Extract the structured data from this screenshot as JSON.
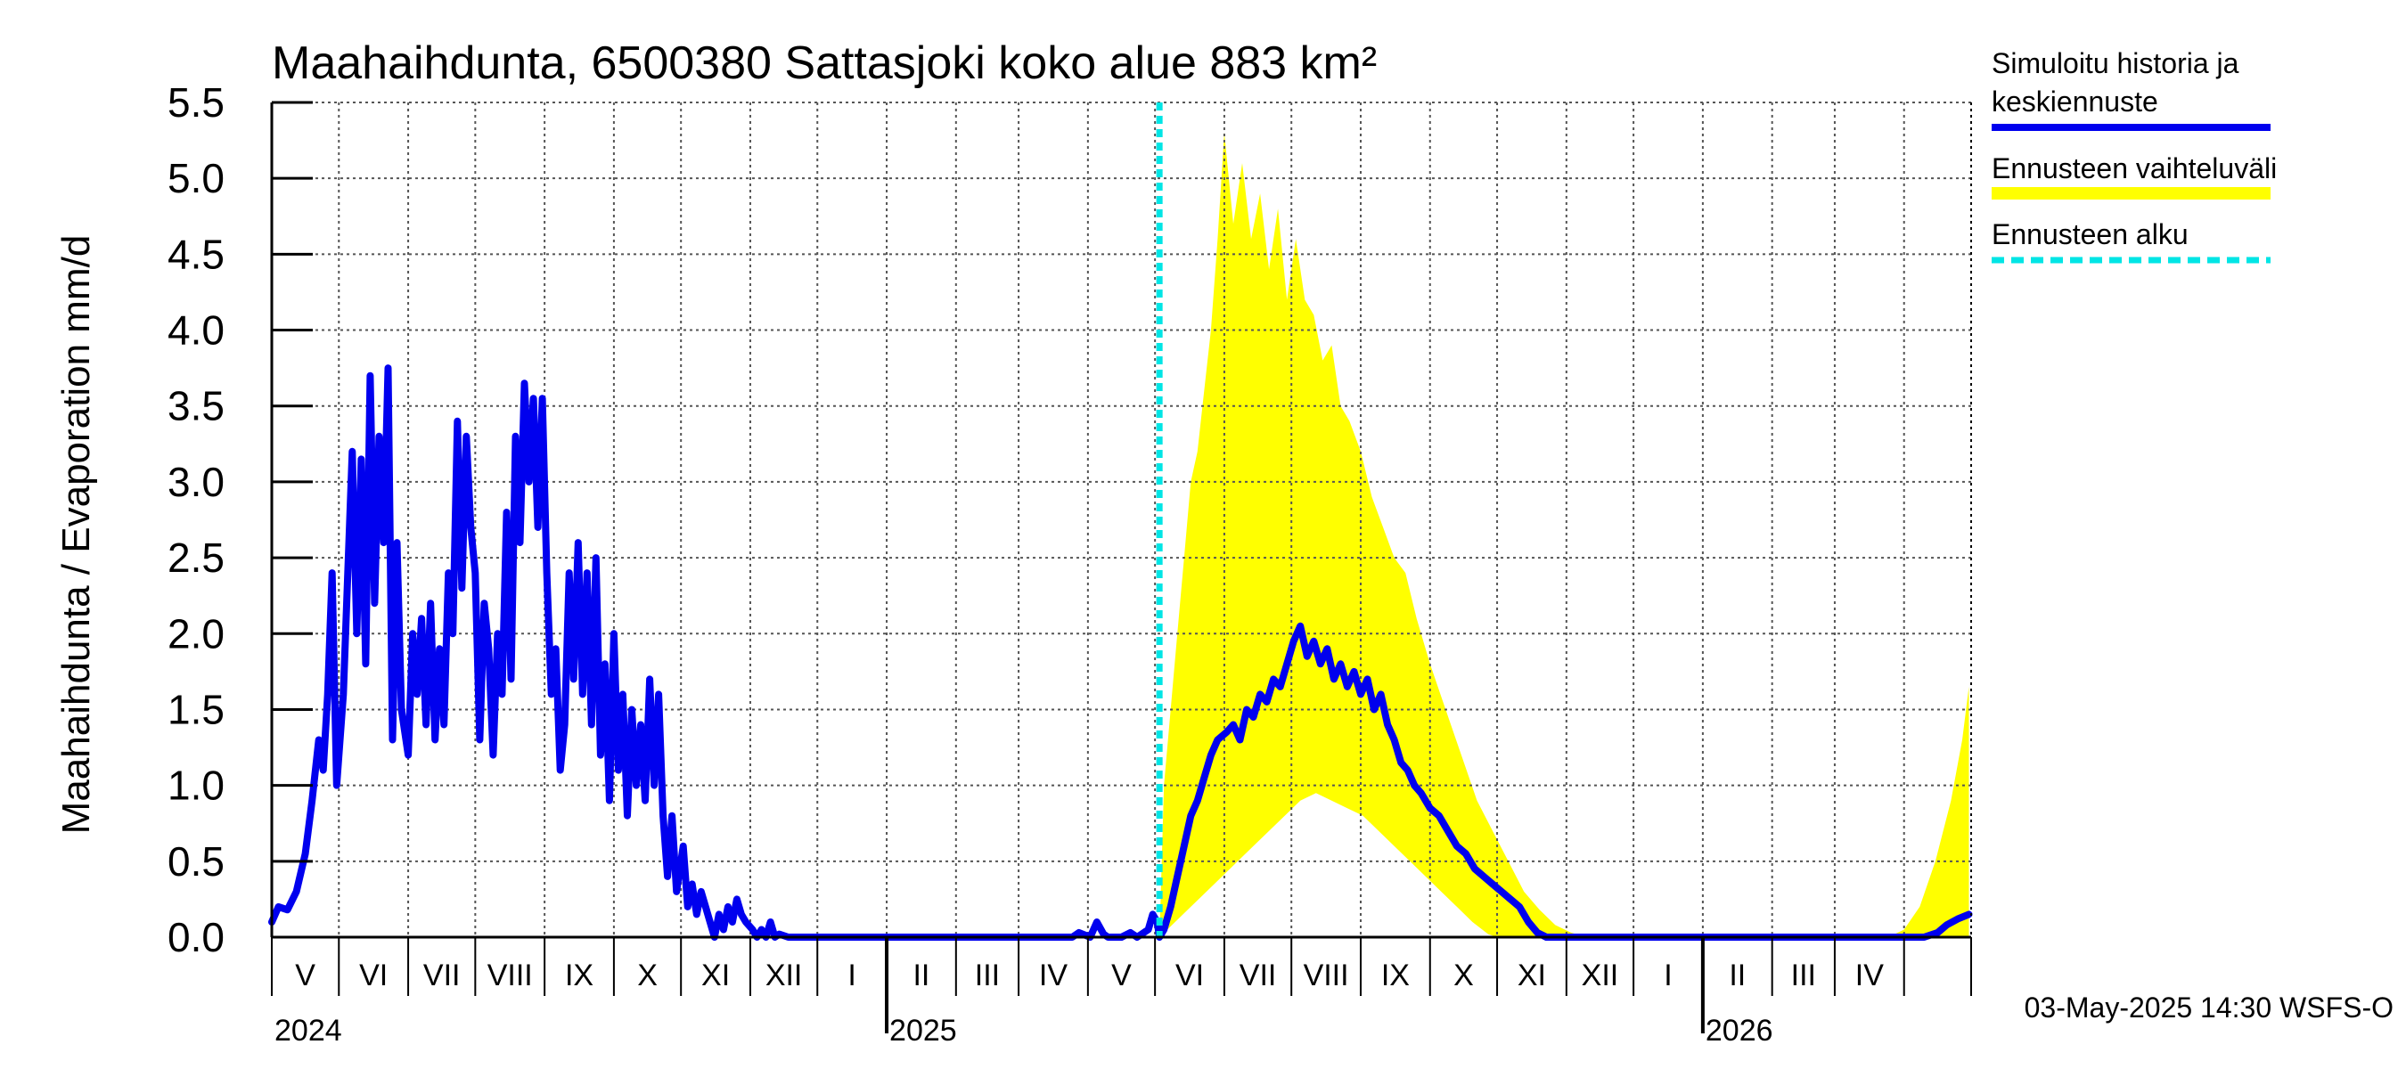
{
  "chart_data": {
    "type": "line",
    "title": "Maahaihdunta, 6500380 Sattasjoki koko alue 883 km²",
    "ylabel": "Maahaihdunta / Evaporation   mm/d",
    "ylim": [
      0,
      5.5
    ],
    "yticks": [
      "0.0",
      "0.5",
      "1.0",
      "1.5",
      "2.0",
      "2.5",
      "3.0",
      "3.5",
      "4.0",
      "4.5",
      "5.0",
      "5.5"
    ],
    "xlim": [
      "2024-04-01",
      "2026-04-30"
    ],
    "grid": true,
    "months": [
      "V",
      "VI",
      "VII",
      "VIII",
      "IX",
      "X",
      "XI",
      "XII",
      "I",
      "II",
      "III",
      "IV",
      "V",
      "VI",
      "VII",
      "VIII",
      "IX",
      "X",
      "XI",
      "XII",
      "I",
      "II",
      "III",
      "IV"
    ],
    "years": [
      "2024",
      "2025",
      "2026"
    ],
    "forecast_start": "2025-05-03",
    "legend": [
      {
        "label_lines": [
          "Simuloitu historia ja",
          "keskiennuste"
        ],
        "color": "#0000ee",
        "style": "solid"
      },
      {
        "label_lines": [
          "Ennusteen vaihteluväli"
        ],
        "color": "#ffff00",
        "style": "band"
      },
      {
        "label_lines": [
          "Ennusteen alku"
        ],
        "color": "#00e5e5",
        "style": "dashed"
      }
    ],
    "series": [
      {
        "name": "Simuloitu historia ja keskiennuste",
        "color": "#0000ee",
        "points": [
          [
            "2024-04-01",
            0.1
          ],
          [
            "2024-04-04",
            0.2
          ],
          [
            "2024-04-08",
            0.18
          ],
          [
            "2024-04-12",
            0.3
          ],
          [
            "2024-04-16",
            0.55
          ],
          [
            "2024-04-19",
            0.9
          ],
          [
            "2024-04-22",
            1.3
          ],
          [
            "2024-04-24",
            1.1
          ],
          [
            "2024-04-26",
            1.6
          ],
          [
            "2024-04-28",
            2.4
          ],
          [
            "2024-04-30",
            1.0
          ],
          [
            "2024-05-03",
            1.6
          ],
          [
            "2024-05-05",
            2.4
          ],
          [
            "2024-05-07",
            3.2
          ],
          [
            "2024-05-09",
            2.0
          ],
          [
            "2024-05-11",
            3.15
          ],
          [
            "2024-05-13",
            1.8
          ],
          [
            "2024-05-15",
            3.7
          ],
          [
            "2024-05-17",
            2.2
          ],
          [
            "2024-05-19",
            3.3
          ],
          [
            "2024-05-21",
            2.6
          ],
          [
            "2024-05-23",
            3.75
          ],
          [
            "2024-05-25",
            1.3
          ],
          [
            "2024-05-27",
            2.6
          ],
          [
            "2024-05-29",
            1.5
          ],
          [
            "2024-06-01",
            1.2
          ],
          [
            "2024-06-03",
            2.0
          ],
          [
            "2024-06-05",
            1.6
          ],
          [
            "2024-06-07",
            2.1
          ],
          [
            "2024-06-09",
            1.4
          ],
          [
            "2024-06-11",
            2.2
          ],
          [
            "2024-06-13",
            1.3
          ],
          [
            "2024-06-15",
            1.9
          ],
          [
            "2024-06-17",
            1.4
          ],
          [
            "2024-06-19",
            2.4
          ],
          [
            "2024-06-21",
            2.0
          ],
          [
            "2024-06-23",
            3.4
          ],
          [
            "2024-06-25",
            2.3
          ],
          [
            "2024-06-27",
            3.3
          ],
          [
            "2024-06-29",
            2.7
          ],
          [
            "2024-07-01",
            2.4
          ],
          [
            "2024-07-03",
            1.3
          ],
          [
            "2024-07-05",
            2.2
          ],
          [
            "2024-07-07",
            1.9
          ],
          [
            "2024-07-09",
            1.2
          ],
          [
            "2024-07-11",
            2.0
          ],
          [
            "2024-07-13",
            1.6
          ],
          [
            "2024-07-15",
            2.8
          ],
          [
            "2024-07-17",
            1.7
          ],
          [
            "2024-07-19",
            3.3
          ],
          [
            "2024-07-21",
            2.6
          ],
          [
            "2024-07-23",
            3.65
          ],
          [
            "2024-07-25",
            3.0
          ],
          [
            "2024-07-27",
            3.55
          ],
          [
            "2024-07-29",
            2.7
          ],
          [
            "2024-07-31",
            3.55
          ],
          [
            "2024-08-02",
            2.4
          ],
          [
            "2024-08-04",
            1.6
          ],
          [
            "2024-08-06",
            1.9
          ],
          [
            "2024-08-08",
            1.1
          ],
          [
            "2024-08-10",
            1.4
          ],
          [
            "2024-08-12",
            2.4
          ],
          [
            "2024-08-14",
            1.7
          ],
          [
            "2024-08-16",
            2.6
          ],
          [
            "2024-08-18",
            1.6
          ],
          [
            "2024-08-20",
            2.4
          ],
          [
            "2024-08-22",
            1.4
          ],
          [
            "2024-08-24",
            2.5
          ],
          [
            "2024-08-26",
            1.2
          ],
          [
            "2024-08-28",
            1.8
          ],
          [
            "2024-08-30",
            0.9
          ],
          [
            "2024-09-01",
            2.0
          ],
          [
            "2024-09-03",
            1.1
          ],
          [
            "2024-09-05",
            1.6
          ],
          [
            "2024-09-07",
            0.8
          ],
          [
            "2024-09-09",
            1.5
          ],
          [
            "2024-09-11",
            1.0
          ],
          [
            "2024-09-13",
            1.4
          ],
          [
            "2024-09-15",
            0.9
          ],
          [
            "2024-09-17",
            1.7
          ],
          [
            "2024-09-19",
            1.0
          ],
          [
            "2024-09-21",
            1.6
          ],
          [
            "2024-09-23",
            0.8
          ],
          [
            "2024-09-25",
            0.4
          ],
          [
            "2024-09-27",
            0.8
          ],
          [
            "2024-09-29",
            0.3
          ],
          [
            "2024-10-02",
            0.6
          ],
          [
            "2024-10-04",
            0.2
          ],
          [
            "2024-10-06",
            0.35
          ],
          [
            "2024-10-08",
            0.15
          ],
          [
            "2024-10-10",
            0.3
          ],
          [
            "2024-10-12",
            0.2
          ],
          [
            "2024-10-14",
            0.1
          ],
          [
            "2024-10-16",
            0.0
          ],
          [
            "2024-10-18",
            0.15
          ],
          [
            "2024-10-20",
            0.05
          ],
          [
            "2024-10-22",
            0.2
          ],
          [
            "2024-10-24",
            0.1
          ],
          [
            "2024-10-26",
            0.25
          ],
          [
            "2024-10-28",
            0.15
          ],
          [
            "2024-10-30",
            0.1
          ],
          [
            "2024-11-02",
            0.05
          ],
          [
            "2024-11-04",
            0.0
          ],
          [
            "2024-11-06",
            0.05
          ],
          [
            "2024-11-08",
            0.0
          ],
          [
            "2024-11-10",
            0.1
          ],
          [
            "2024-11-12",
            0.0
          ],
          [
            "2024-11-14",
            0.02
          ],
          [
            "2024-11-18",
            0.0
          ],
          [
            "2025-03-25",
            0.0
          ],
          [
            "2025-03-28",
            0.03
          ],
          [
            "2025-04-02",
            0.0
          ],
          [
            "2025-04-05",
            0.1
          ],
          [
            "2025-04-08",
            0.02
          ],
          [
            "2025-04-10",
            0.0
          ],
          [
            "2025-04-16",
            0.0
          ],
          [
            "2025-04-20",
            0.03
          ],
          [
            "2025-04-23",
            0.0
          ],
          [
            "2025-04-28",
            0.05
          ],
          [
            "2025-04-30",
            0.15
          ],
          [
            "2025-05-02",
            0.1
          ],
          [
            "2025-05-03",
            0.0
          ],
          [
            "2025-05-05",
            0.05
          ],
          [
            "2025-05-08",
            0.2
          ],
          [
            "2025-05-11",
            0.4
          ],
          [
            "2025-05-14",
            0.6
          ],
          [
            "2025-05-17",
            0.8
          ],
          [
            "2025-05-20",
            0.9
          ],
          [
            "2025-05-23",
            1.05
          ],
          [
            "2025-05-26",
            1.2
          ],
          [
            "2025-05-29",
            1.3
          ],
          [
            "2025-06-02",
            1.35
          ],
          [
            "2025-06-05",
            1.4
          ],
          [
            "2025-06-08",
            1.3
          ],
          [
            "2025-06-11",
            1.5
          ],
          [
            "2025-06-14",
            1.45
          ],
          [
            "2025-06-17",
            1.6
          ],
          [
            "2025-06-20",
            1.55
          ],
          [
            "2025-06-23",
            1.7
          ],
          [
            "2025-06-26",
            1.65
          ],
          [
            "2025-06-29",
            1.8
          ],
          [
            "2025-07-02",
            1.95
          ],
          [
            "2025-07-05",
            2.05
          ],
          [
            "2025-07-08",
            1.85
          ],
          [
            "2025-07-11",
            1.95
          ],
          [
            "2025-07-14",
            1.8
          ],
          [
            "2025-07-17",
            1.9
          ],
          [
            "2025-07-20",
            1.7
          ],
          [
            "2025-07-23",
            1.8
          ],
          [
            "2025-07-26",
            1.65
          ],
          [
            "2025-07-29",
            1.75
          ],
          [
            "2025-08-01",
            1.6
          ],
          [
            "2025-08-04",
            1.7
          ],
          [
            "2025-08-07",
            1.5
          ],
          [
            "2025-08-10",
            1.6
          ],
          [
            "2025-08-13",
            1.4
          ],
          [
            "2025-08-16",
            1.3
          ],
          [
            "2025-08-19",
            1.15
          ],
          [
            "2025-08-22",
            1.1
          ],
          [
            "2025-08-25",
            1.0
          ],
          [
            "2025-08-28",
            0.95
          ],
          [
            "2025-09-01",
            0.85
          ],
          [
            "2025-09-05",
            0.8
          ],
          [
            "2025-09-09",
            0.7
          ],
          [
            "2025-09-13",
            0.6
          ],
          [
            "2025-09-17",
            0.55
          ],
          [
            "2025-09-21",
            0.45
          ],
          [
            "2025-09-25",
            0.4
          ],
          [
            "2025-09-29",
            0.35
          ],
          [
            "2025-10-03",
            0.3
          ],
          [
            "2025-10-07",
            0.25
          ],
          [
            "2025-10-11",
            0.2
          ],
          [
            "2025-10-15",
            0.1
          ],
          [
            "2025-10-19",
            0.03
          ],
          [
            "2025-10-23",
            0.0
          ],
          [
            "2026-03-28",
            0.0
          ],
          [
            "2026-04-10",
            0.0
          ],
          [
            "2026-04-16",
            0.03
          ],
          [
            "2026-04-20",
            0.08
          ],
          [
            "2026-04-25",
            0.12
          ],
          [
            "2026-04-30",
            0.15
          ]
        ]
      },
      {
        "name": "Ennusteen vaihteluväli",
        "color": "#ffff00",
        "upper": [
          [
            "2025-05-03",
            0.0
          ],
          [
            "2025-05-05",
            1.0
          ],
          [
            "2025-05-08",
            1.5
          ],
          [
            "2025-05-11",
            2.0
          ],
          [
            "2025-05-14",
            2.5
          ],
          [
            "2025-05-17",
            3.0
          ],
          [
            "2025-05-20",
            3.2
          ],
          [
            "2025-05-23",
            3.6
          ],
          [
            "2025-05-26",
            4.0
          ],
          [
            "2025-05-29",
            4.6
          ],
          [
            "2025-06-01",
            5.3
          ],
          [
            "2025-06-05",
            4.7
          ],
          [
            "2025-06-09",
            5.1
          ],
          [
            "2025-06-13",
            4.6
          ],
          [
            "2025-06-17",
            4.9
          ],
          [
            "2025-06-21",
            4.4
          ],
          [
            "2025-06-25",
            4.8
          ],
          [
            "2025-06-29",
            4.2
          ],
          [
            "2025-07-03",
            4.6
          ],
          [
            "2025-07-07",
            4.2
          ],
          [
            "2025-07-11",
            4.1
          ],
          [
            "2025-07-15",
            3.8
          ],
          [
            "2025-07-19",
            3.9
          ],
          [
            "2025-07-23",
            3.5
          ],
          [
            "2025-07-27",
            3.4
          ],
          [
            "2025-08-01",
            3.2
          ],
          [
            "2025-08-06",
            2.9
          ],
          [
            "2025-08-11",
            2.7
          ],
          [
            "2025-08-16",
            2.5
          ],
          [
            "2025-08-21",
            2.4
          ],
          [
            "2025-08-26",
            2.1
          ],
          [
            "2025-09-01",
            1.8
          ],
          [
            "2025-09-08",
            1.5
          ],
          [
            "2025-09-15",
            1.2
          ],
          [
            "2025-09-22",
            0.9
          ],
          [
            "2025-09-29",
            0.7
          ],
          [
            "2025-10-06",
            0.5
          ],
          [
            "2025-10-13",
            0.3
          ],
          [
            "2025-10-20",
            0.18
          ],
          [
            "2025-10-27",
            0.08
          ],
          [
            "2025-11-03",
            0.03
          ],
          [
            "2025-11-10",
            0.0
          ],
          [
            "2026-03-25",
            0.0
          ],
          [
            "2026-04-01",
            0.05
          ],
          [
            "2026-04-08",
            0.2
          ],
          [
            "2026-04-15",
            0.5
          ],
          [
            "2026-04-22",
            0.9
          ],
          [
            "2026-04-27",
            1.3
          ],
          [
            "2026-04-30",
            1.65
          ]
        ],
        "lower": [
          [
            "2025-05-03",
            0.0
          ],
          [
            "2025-05-10",
            0.1
          ],
          [
            "2025-05-17",
            0.2
          ],
          [
            "2025-05-24",
            0.3
          ],
          [
            "2025-05-31",
            0.4
          ],
          [
            "2025-06-07",
            0.5
          ],
          [
            "2025-06-14",
            0.6
          ],
          [
            "2025-06-21",
            0.7
          ],
          [
            "2025-06-28",
            0.8
          ],
          [
            "2025-07-05",
            0.9
          ],
          [
            "2025-07-12",
            0.95
          ],
          [
            "2025-07-19",
            0.9
          ],
          [
            "2025-07-26",
            0.85
          ],
          [
            "2025-08-02",
            0.8
          ],
          [
            "2025-08-09",
            0.7
          ],
          [
            "2025-08-16",
            0.6
          ],
          [
            "2025-08-23",
            0.5
          ],
          [
            "2025-08-30",
            0.4
          ],
          [
            "2025-09-06",
            0.3
          ],
          [
            "2025-09-13",
            0.2
          ],
          [
            "2025-09-20",
            0.1
          ],
          [
            "2025-09-27",
            0.02
          ],
          [
            "2025-10-01",
            0.0
          ],
          [
            "2026-04-30",
            0.0
          ]
        ]
      }
    ],
    "forecast_line_color": "#00e5e5",
    "footer": "03-May-2025 14:30 WSFS-O"
  }
}
